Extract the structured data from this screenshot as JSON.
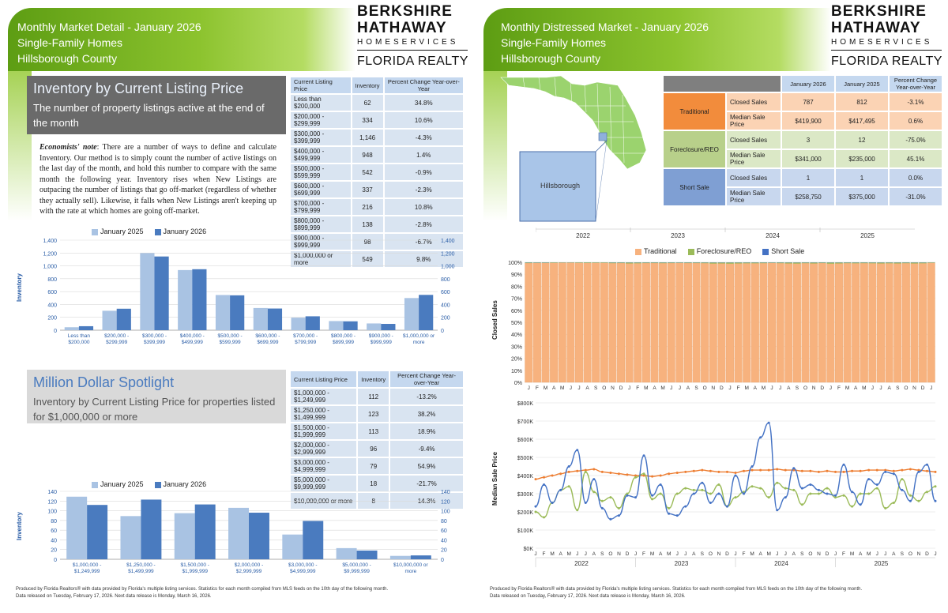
{
  "left": {
    "header": {
      "line1": "Monthly Market Detail - January 2026",
      "line2": "Single-Family Homes",
      "line3": "Hillsborough County"
    },
    "logo": {
      "line1": "BERKSHIRE",
      "line2": "HATHAWAY",
      "line3": "HOMESERVICES",
      "line4": "FLORIDA REALTY"
    },
    "inventory_section": {
      "title": "Inventory by Current Listing Price",
      "subtitle": "The number of property listings active at the end of the month",
      "note_label": "Economists' note",
      "note_text": ": There are a number of ways to define and calculate Inventory. Our method is to simply count the number of active listings on the last day of the month, and hold this number to compare with the same month the following year. Inventory rises when New Listings are outpacing the number of listings that go off-market (regardless of whether they actually sell). Likewise, it falls when New Listings aren't keeping up with the rate at which homes are going off-market."
    },
    "inventory_table": {
      "headers": [
        "Current Listing Price",
        "Inventory",
        "Percent Change Year-over-Year"
      ],
      "rows": [
        [
          "Less than $200,000",
          "62",
          "34.8%"
        ],
        [
          "$200,000 - $299,999",
          "334",
          "10.6%"
        ],
        [
          "$300,000 - $399,999",
          "1,146",
          "-4.3%"
        ],
        [
          "$400,000 - $499,999",
          "948",
          "1.4%"
        ],
        [
          "$500,000 - $599,999",
          "542",
          "-0.9%"
        ],
        [
          "$600,000 - $699,999",
          "337",
          "-2.3%"
        ],
        [
          "$700,000 - $799,999",
          "216",
          "10.8%"
        ],
        [
          "$800,000 - $899,999",
          "138",
          "-2.8%"
        ],
        [
          "$900,000 - $999,999",
          "98",
          "-6.7%"
        ],
        [
          "$1,000,000 or more",
          "549",
          "9.8%"
        ]
      ]
    },
    "million_section": {
      "title": "Million Dollar Spotlight",
      "subtitle": "Inventory by Current Listing Price for properties listed for $1,000,000 or more"
    },
    "million_table": {
      "headers": [
        "Current Listing Price",
        "Inventory",
        "Percent Change Year-over-Year"
      ],
      "rows": [
        [
          "$1,000,000 - $1,249,999",
          "112",
          "-13.2%"
        ],
        [
          "$1,250,000 - $1,499,999",
          "123",
          "38.2%"
        ],
        [
          "$1,500,000 - $1,999,999",
          "113",
          "18.9%"
        ],
        [
          "$2,000,000 - $2,999,999",
          "96",
          "-9.4%"
        ],
        [
          "$3,000,000 - $4,999,999",
          "79",
          "54.9%"
        ],
        [
          "$5,000,000 - $9,999,999",
          "18",
          "-21.7%"
        ],
        [
          "$10,000,000 or more",
          "8",
          "14.3%"
        ]
      ]
    },
    "footer": {
      "line1": "Produced by Florida Realtors® with data provided by Florida's multiple listing services. Statistics for each month compiled from MLS feeds on the 10th day of the following month.",
      "line2": "Data released on Tuesday, February 17, 2026. Next data release is Monday, March 16, 2026."
    }
  },
  "right": {
    "header": {
      "line1": "Monthly Distressed Market - January 2026",
      "line2": "Single-Family Homes",
      "line3": "Hillsborough County"
    },
    "logo": {
      "line1": "BERKSHIRE",
      "line2": "HATHAWAY",
      "line3": "HOMESERVICES",
      "line4": "FLORIDA REALTY"
    },
    "map_label": "Hillsborough",
    "distressed_table": {
      "headers": [
        "January 2026",
        "January 2025",
        "Percent Change Year-over-Year"
      ],
      "groups": [
        {
          "name": "Traditional",
          "color": "#f4a261",
          "rows": [
            [
              "Closed Sales",
              "787",
              "812",
              "-3.1%"
            ],
            [
              "Median Sale Price",
              "$419,900",
              "$417,495",
              "0.6%"
            ]
          ]
        },
        {
          "name": "Foreclosure/REO",
          "color": "#c5d9a0",
          "rows": [
            [
              "Closed Sales",
              "3",
              "12",
              "-75.0%"
            ],
            [
              "Median Sale Price",
              "$341,000",
              "$235,000",
              "45.1%"
            ]
          ]
        },
        {
          "name": "Short Sale",
          "color": "#8fb0dc",
          "rows": [
            [
              "Closed Sales",
              "1",
              "1",
              "0.0%"
            ],
            [
              "Median Sale Price",
              "$258,750",
              "$375,000",
              "-31.0%"
            ]
          ]
        }
      ]
    },
    "footer": {
      "line1": "Produced by Florida Realtors® with data provided by Florida's multiple listing services. Statistics for each month compiled from MLS feeds on the 10th day of the following month.",
      "line2": "Data released on Tuesday, February 17, 2026. Next data release is Monday, March 16, 2026."
    }
  },
  "colors": {
    "bar2025": "#a9c3e3",
    "bar2026": "#4a7bbf",
    "traditional": "#f7b27e",
    "traditional_line": "#ed7d31",
    "foreclosure": "#9bbb59",
    "short": "#4472c4"
  },
  "chart_data": [
    {
      "type": "bar",
      "ylabel": "Inventory",
      "categories": [
        "Less than $200,000",
        "$200,000 - $299,999",
        "$300,000 - $399,999",
        "$400,000 - $499,999",
        "$500,000 - $599,999",
        "$600,000 - $699,999",
        "$700,000 - $799,999",
        "$800,000 - $899,999",
        "$900,000 - $999,999",
        "$1,000,000 or more"
      ],
      "series": [
        {
          "name": "January 2025",
          "values": [
            46,
            302,
            1198,
            935,
            547,
            345,
            195,
            142,
            105,
            500
          ]
        },
        {
          "name": "January 2026",
          "values": [
            62,
            334,
            1146,
            948,
            542,
            337,
            216,
            138,
            98,
            549
          ]
        }
      ],
      "ylim": [
        0,
        1400
      ],
      "yticks": [
        "0",
        "200",
        "400",
        "600",
        "800",
        "1,000",
        "1,200",
        "1,400"
      ]
    },
    {
      "type": "bar",
      "ylabel": "Inventory",
      "categories": [
        "$1,000,000 - $1,249,999",
        "$1,250,000 - $1,499,999",
        "$1,500,000 - $1,999,999",
        "$2,000,000 - $2,999,999",
        "$3,000,000 - $4,999,999",
        "$5,000,000 - $9,999,999",
        "$10,000,000 or more"
      ],
      "series": [
        {
          "name": "January 2025",
          "values": [
            129,
            89,
            95,
            106,
            51,
            23,
            7
          ]
        },
        {
          "name": "January 2026",
          "values": [
            112,
            123,
            113,
            96,
            79,
            18,
            8
          ]
        }
      ],
      "ylim": [
        0,
        140
      ],
      "yticks": [
        "0",
        "20",
        "40",
        "60",
        "80",
        "100",
        "120",
        "140"
      ]
    },
    {
      "type": "bar",
      "stacked": true,
      "ylabel": "Closed Sales",
      "months": [
        "J",
        "F",
        "M",
        "A",
        "M",
        "J",
        "J",
        "A",
        "S",
        "O",
        "N",
        "D",
        "J",
        "F",
        "M",
        "A",
        "M",
        "J",
        "J",
        "A",
        "S",
        "O",
        "N",
        "D",
        "J",
        "F",
        "M",
        "A",
        "M",
        "J",
        "J",
        "A",
        "S",
        "O",
        "N",
        "D",
        "J",
        "F",
        "M",
        "A",
        "M",
        "J",
        "J",
        "A",
        "S",
        "O",
        "N",
        "D",
        "J"
      ],
      "years": [
        "2022",
        "2023",
        "2024",
        "2025"
      ],
      "series": [
        {
          "name": "Traditional",
          "share": [
            99.3,
            99.4,
            99.4,
            99.5,
            99.6,
            99.6,
            99.5,
            99.4,
            99.5,
            99.5,
            99.2,
            99.3,
            99.0,
            99.1,
            99.3,
            99.3,
            99.2,
            99.3,
            99.4,
            99.3,
            99.3,
            99.2,
            98.9,
            99.0,
            98.8,
            99.0,
            99.1,
            99.1,
            99.2,
            99.4,
            99.2,
            99.0,
            98.9,
            99.2,
            99.0,
            99.3,
            98.8,
            99.0,
            99.2,
            99.1,
            99.2,
            99.1,
            99.0,
            99.1,
            99.0,
            99.2,
            99.0,
            99.1,
            99.5
          ]
        },
        {
          "name": "Foreclosure/REO",
          "share": [
            0.5,
            0.4,
            0.4,
            0.4,
            0.3,
            0.3,
            0.4,
            0.5,
            0.4,
            0.4,
            0.6,
            0.5,
            0.8,
            0.7,
            0.5,
            0.5,
            0.6,
            0.5,
            0.4,
            0.5,
            0.5,
            0.6,
            0.9,
            0.8,
            1.0,
            0.8,
            0.7,
            0.7,
            0.6,
            0.4,
            0.6,
            0.8,
            0.9,
            0.6,
            0.8,
            0.5,
            1.0,
            0.8,
            0.6,
            0.7,
            0.6,
            0.7,
            0.8,
            0.7,
            0.8,
            0.6,
            0.8,
            0.7,
            0.4
          ]
        },
        {
          "name": "Short Sale",
          "share": [
            0.2,
            0.2,
            0.2,
            0.1,
            0.1,
            0.1,
            0.1,
            0.1,
            0.1,
            0.1,
            0.2,
            0.2,
            0.2,
            0.2,
            0.2,
            0.2,
            0.2,
            0.2,
            0.2,
            0.2,
            0.2,
            0.2,
            0.2,
            0.2,
            0.2,
            0.2,
            0.2,
            0.2,
            0.2,
            0.2,
            0.2,
            0.2,
            0.2,
            0.2,
            0.2,
            0.2,
            0.2,
            0.2,
            0.2,
            0.2,
            0.2,
            0.2,
            0.2,
            0.2,
            0.2,
            0.2,
            0.2,
            0.2,
            0.1
          ]
        }
      ],
      "yticks": [
        "0%",
        "10%",
        "20%",
        "30%",
        "40%",
        "50%",
        "60%",
        "70%",
        "80%",
        "90%",
        "100%"
      ]
    },
    {
      "type": "line",
      "ylabel": "Median Sale Price",
      "yticks": [
        "$0K",
        "$100K",
        "$200K",
        "$300K",
        "$400K",
        "$500K",
        "$600K",
        "$700K",
        "$800K"
      ],
      "ylim": [
        0,
        800000
      ],
      "series": [
        {
          "name": "Traditional",
          "values": [
            380000,
            390000,
            400000,
            410000,
            420000,
            425000,
            430000,
            435000,
            420000,
            415000,
            410000,
            405000,
            400000,
            400000,
            395000,
            400000,
            410000,
            415000,
            420000,
            425000,
            430000,
            425000,
            420000,
            420000,
            415000,
            425000,
            430000,
            430000,
            430000,
            435000,
            430000,
            430000,
            425000,
            425000,
            420000,
            425000,
            420000,
            420000,
            425000,
            425000,
            430000,
            430000,
            430000,
            425000,
            430000,
            435000,
            430000,
            425000,
            420000
          ]
        },
        {
          "name": "Foreclosure/REO",
          "values": [
            200000,
            170000,
            250000,
            320000,
            340000,
            210000,
            420000,
            310000,
            260000,
            280000,
            220000,
            300000,
            390000,
            410000,
            270000,
            300000,
            220000,
            300000,
            330000,
            320000,
            320000,
            300000,
            350000,
            230000,
            280000,
            310000,
            340000,
            330000,
            280000,
            360000,
            330000,
            320000,
            240000,
            300000,
            300000,
            330000,
            280000,
            290000,
            230000,
            300000,
            300000,
            330000,
            220000,
            250000,
            380000,
            290000,
            260000,
            310000,
            340000
          ]
        },
        {
          "name": "Short Sale",
          "values": [
            230000,
            350000,
            250000,
            320000,
            450000,
            540000,
            250000,
            380000,
            220000,
            160000,
            180000,
            290000,
            280000,
            510000,
            290000,
            350000,
            190000,
            180000,
            230000,
            300000,
            360000,
            250000,
            300000,
            230000,
            400000,
            300000,
            450000,
            610000,
            690000,
            210000,
            280000,
            440000,
            330000,
            350000,
            320000,
            300000,
            290000,
            460000,
            310000,
            240000,
            380000,
            350000,
            420000,
            410000,
            320000,
            260000,
            420000,
            460000,
            260000
          ]
        }
      ]
    }
  ]
}
